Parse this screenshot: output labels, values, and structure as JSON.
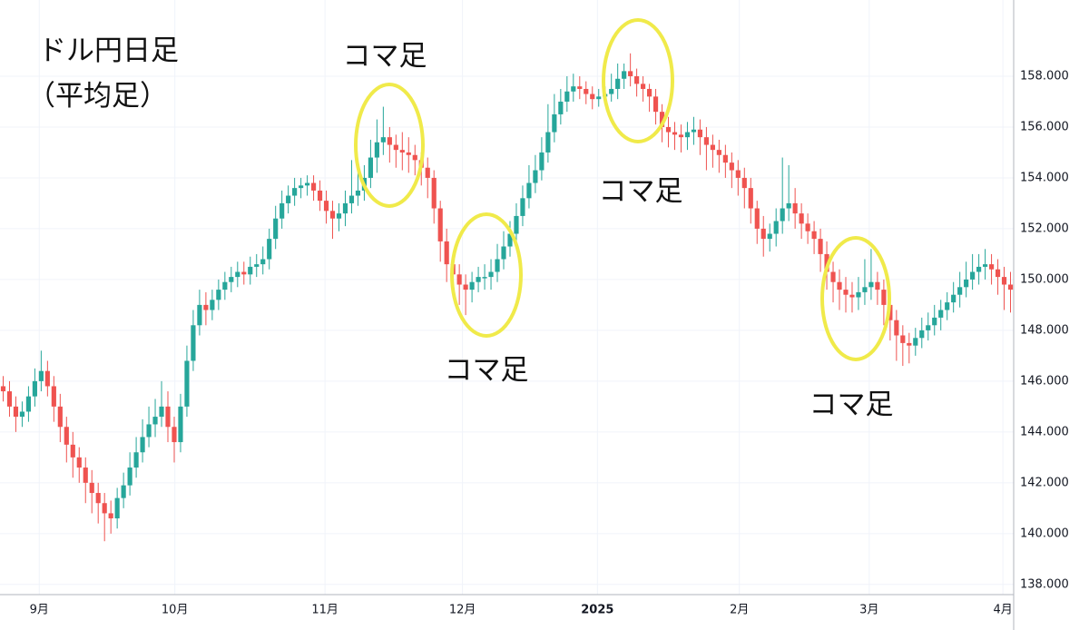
{
  "chart_data": {
    "type": "candlestick",
    "title": "ドル円日足",
    "subtitle": "（平均足）",
    "annotations": [
      "コマ足",
      "コマ足",
      "コマ足",
      "コマ足"
    ],
    "up_color": "#26a69a",
    "down_color": "#ef5350",
    "grid": true,
    "xlim": [
      0,
      160
    ],
    "xticks": [
      {
        "value": 6.2,
        "label": "9月"
      },
      {
        "value": 27.6,
        "label": "10月"
      },
      {
        "value": 51.3,
        "label": "11月"
      },
      {
        "value": 73,
        "label": "12月"
      },
      {
        "value": 94.3,
        "label": "2025"
      },
      {
        "value": 116.7,
        "label": "2月"
      },
      {
        "value": 137.2,
        "label": "3月"
      },
      {
        "value": 158.3,
        "label": "4月"
      }
    ],
    "ylim": [
      137.6,
      161
    ],
    "yticks": [
      {
        "value": 138,
        "label": "138.000"
      },
      {
        "value": 140,
        "label": "140.000"
      },
      {
        "value": 142,
        "label": "142.000"
      },
      {
        "value": 144,
        "label": "144.000"
      },
      {
        "value": 146,
        "label": "146.000"
      },
      {
        "value": 148,
        "label": "148.000"
      },
      {
        "value": 150,
        "label": "150.000"
      },
      {
        "value": 152,
        "label": "152.000"
      },
      {
        "value": 154,
        "label": "154.000"
      },
      {
        "value": 156,
        "label": "156.000"
      },
      {
        "value": 158,
        "label": "158.000"
      }
    ],
    "open": [
      145.8,
      145.6,
      145.0,
      144.6,
      144.8,
      145.4,
      146.0,
      146.4,
      145.8,
      145.0,
      144.2,
      143.5,
      143.0,
      142.6,
      142.0,
      141.6,
      141.2,
      140.8,
      140.6,
      141.4,
      141.9,
      142.6,
      143.2,
      143.8,
      144.3,
      144.6,
      145.0,
      144.2,
      143.6,
      145.0,
      146.8,
      148.2,
      149.0,
      148.8,
      149.2,
      149.6,
      149.9,
      150.1,
      150.3,
      150.2,
      150.5,
      150.6,
      150.8,
      151.6,
      152.4,
      153.0,
      153.3,
      153.6,
      153.7,
      153.8,
      153.5,
      153.1,
      152.7,
      152.4,
      152.6,
      153.0,
      153.3,
      153.5,
      154.0,
      154.8,
      155.4,
      155.6,
      155.3,
      155.1,
      155.0,
      154.9,
      154.7,
      154.4,
      154.0,
      152.8,
      151.5,
      150.6,
      150.2,
      149.8,
      149.6,
      149.9,
      150.1,
      150.1,
      150.3,
      150.8,
      151.3,
      151.8,
      152.5,
      153.2,
      153.8,
      154.3,
      155.0,
      155.8,
      156.5,
      157.0,
      157.4,
      157.6,
      157.5,
      157.3,
      157.1,
      157.2,
      157.3,
      157.5,
      157.9,
      158.2,
      158.0,
      157.7,
      157.5,
      157.2,
      156.6,
      156.0,
      155.8,
      155.7,
      155.6,
      155.8,
      155.9,
      155.6,
      155.3,
      155.1,
      154.9,
      154.6,
      154.3,
      154.0,
      153.6,
      152.8,
      152.0,
      151.6,
      151.8,
      152.3,
      152.8,
      153.0,
      152.6,
      152.2,
      151.9,
      151.6,
      151.0,
      150.3,
      149.9,
      149.6,
      149.4,
      149.3,
      149.5,
      149.7,
      149.9,
      149.6,
      149.0,
      148.4,
      147.8,
      147.5,
      147.4,
      147.7,
      148.0,
      148.2,
      148.5,
      148.8,
      149.1,
      149.4,
      149.7,
      150.0,
      150.3,
      150.5,
      150.6,
      150.4,
      150.1,
      149.8
    ],
    "high": [
      146.2,
      146.0,
      145.4,
      145.2,
      145.8,
      146.5,
      147.2,
      146.8,
      146.2,
      145.5,
      144.6,
      144.0,
      143.4,
      143.0,
      142.5,
      142.0,
      141.6,
      141.3,
      141.8,
      142.4,
      143.2,
      143.8,
      144.5,
      145.0,
      145.3,
      146.0,
      145.6,
      144.6,
      145.5,
      147.4,
      148.8,
      149.6,
      149.5,
      149.6,
      150.0,
      150.3,
      150.5,
      150.7,
      150.7,
      150.9,
      151.0,
      151.3,
      152.0,
      152.9,
      153.5,
      153.7,
      154.0,
      154.0,
      154.1,
      154.1,
      153.9,
      153.5,
      153.1,
      153.0,
      153.5,
      154.7,
      154.3,
      154.5,
      155.5,
      156.3,
      156.8,
      156.0,
      155.7,
      155.8,
      155.6,
      155.3,
      155.0,
      154.8,
      154.3,
      153.1,
      152.0,
      151.0,
      150.6,
      150.2,
      150.3,
      150.5,
      150.6,
      150.8,
      151.4,
      151.9,
      152.3,
      153.0,
      153.7,
      154.5,
      154.9,
      155.6,
      156.9,
      157.3,
      157.5,
      158.0,
      158.1,
      158.0,
      157.8,
      157.6,
      157.5,
      157.6,
      158.1,
      158.5,
      158.5,
      158.9,
      158.3,
      158.0,
      157.7,
      157.5,
      156.9,
      156.4,
      156.2,
      156.1,
      156.2,
      156.4,
      156.3,
      156.0,
      155.7,
      155.5,
      155.3,
      155.0,
      154.7,
      154.4,
      154.0,
      153.1,
      152.5,
      152.2,
      152.8,
      154.8,
      154.5,
      153.6,
      153.0,
      152.6,
      152.3,
      152.0,
      151.5,
      150.7,
      150.4,
      150.1,
      149.9,
      150.1,
      150.8,
      151.2,
      150.3,
      150.0,
      149.4,
      148.8,
      148.2,
      147.9,
      148.1,
      148.5,
      148.7,
      149.0,
      149.2,
      149.5,
      149.9,
      150.3,
      150.7,
      151.0,
      151.0,
      151.2,
      151.0,
      150.8,
      150.5,
      150.3
    ],
    "low": [
      145.2,
      144.6,
      144.0,
      144.2,
      144.4,
      145.0,
      145.6,
      145.4,
      144.4,
      143.6,
      142.8,
      142.2,
      142.0,
      141.2,
      140.8,
      140.4,
      139.7,
      140.0,
      140.2,
      141.0,
      141.5,
      142.2,
      142.8,
      143.4,
      143.8,
      144.2,
      143.6,
      142.8,
      143.2,
      144.6,
      146.4,
      147.8,
      148.2,
      148.4,
      148.8,
      149.2,
      149.5,
      149.7,
      149.8,
      149.8,
      150.1,
      150.2,
      150.4,
      151.2,
      152.0,
      152.6,
      152.9,
      153.2,
      153.3,
      153.1,
      152.7,
      152.2,
      151.6,
      151.9,
      152.1,
      152.6,
      152.9,
      153.1,
      153.6,
      154.2,
      154.9,
      154.6,
      154.4,
      154.3,
      154.2,
      154.1,
      153.7,
      153.2,
      152.2,
      150.7,
      149.9,
      149.5,
      149.0,
      148.6,
      149.1,
      149.5,
      149.6,
      149.6,
      149.9,
      150.4,
      150.9,
      151.4,
      152.1,
      152.8,
      153.4,
      153.9,
      154.6,
      155.4,
      156.1,
      156.6,
      157.0,
      157.1,
      156.9,
      156.7,
      156.8,
      156.9,
      157.0,
      157.1,
      157.5,
      157.6,
      157.2,
      157.0,
      156.6,
      156.1,
      155.4,
      155.2,
      155.1,
      155.0,
      155.1,
      155.3,
      154.9,
      154.3,
      154.4,
      154.2,
      154.0,
      153.6,
      153.3,
      152.8,
      152.2,
      151.4,
      150.9,
      151.1,
      151.3,
      151.8,
      152.3,
      152.0,
      151.6,
      151.4,
      151.0,
      150.3,
      149.6,
      149.1,
      148.8,
      148.7,
      148.7,
      148.8,
      149.0,
      149.2,
      149.0,
      148.2,
      147.6,
      146.8,
      146.6,
      146.7,
      147.0,
      147.3,
      147.6,
      147.8,
      148.0,
      148.4,
      148.7,
      148.9,
      149.3,
      149.6,
      149.8,
      150.0,
      149.8,
      149.4,
      148.8,
      148.7
    ],
    "close": [
      145.6,
      145.0,
      144.6,
      144.8,
      145.4,
      146.0,
      146.4,
      145.8,
      145.0,
      144.2,
      143.5,
      143.0,
      142.6,
      142.0,
      141.6,
      141.2,
      140.8,
      140.6,
      141.4,
      141.9,
      142.6,
      143.2,
      143.8,
      144.3,
      144.6,
      145.0,
      144.2,
      143.6,
      145.0,
      146.8,
      148.2,
      149.0,
      148.8,
      149.2,
      149.6,
      149.9,
      150.1,
      150.3,
      150.2,
      150.5,
      150.6,
      150.8,
      151.6,
      152.4,
      153.0,
      153.3,
      153.6,
      153.7,
      153.8,
      153.5,
      153.1,
      152.7,
      152.4,
      152.6,
      153.0,
      153.3,
      153.5,
      154.0,
      154.8,
      155.4,
      155.6,
      155.3,
      155.1,
      155.0,
      154.9,
      154.7,
      154.4,
      154.0,
      152.8,
      151.5,
      150.6,
      150.2,
      149.8,
      149.6,
      149.9,
      150.1,
      150.1,
      150.3,
      150.8,
      151.3,
      151.8,
      152.5,
      153.2,
      153.8,
      154.3,
      155.0,
      155.8,
      156.5,
      157.0,
      157.4,
      157.6,
      157.5,
      157.3,
      157.1,
      157.2,
      157.3,
      157.5,
      157.9,
      158.2,
      158.0,
      157.7,
      157.5,
      157.2,
      156.6,
      156.0,
      155.8,
      155.7,
      155.6,
      155.8,
      155.9,
      155.6,
      155.3,
      155.1,
      154.9,
      154.6,
      154.3,
      154.0,
      153.6,
      152.8,
      152.0,
      151.6,
      151.8,
      152.3,
      152.8,
      153.0,
      152.6,
      152.2,
      151.9,
      151.6,
      151.0,
      150.3,
      149.9,
      149.6,
      149.4,
      149.3,
      149.5,
      149.7,
      149.9,
      149.6,
      149.0,
      148.4,
      147.8,
      147.5,
      147.4,
      147.7,
      148.0,
      148.2,
      148.5,
      148.8,
      149.1,
      149.4,
      149.7,
      150.0,
      150.3,
      150.5,
      150.6,
      150.4,
      150.1,
      149.8,
      149.6
    ]
  }
}
